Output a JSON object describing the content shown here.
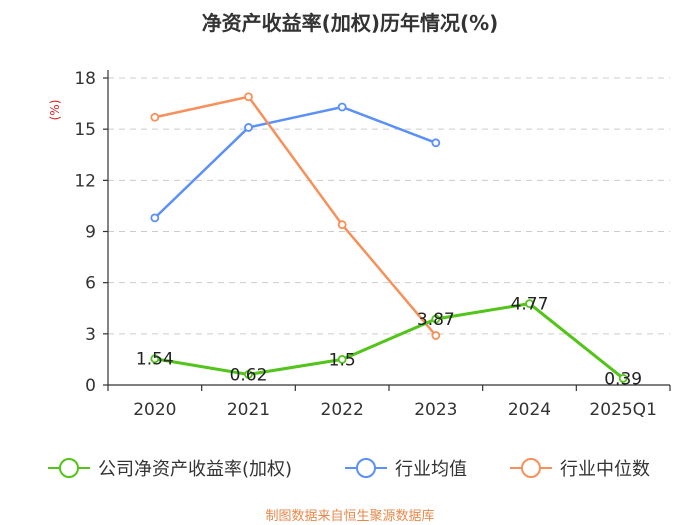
{
  "chart_data": {
    "type": "line",
    "title": "净资产收益率(加权)历年情况(%)",
    "ylabel": "(%)",
    "categories": [
      "2020",
      "2021",
      "2022",
      "2023",
      "2024",
      "2025Q1"
    ],
    "ylim": [
      0,
      18
    ],
    "yticks": [
      0,
      3,
      6,
      9,
      12,
      15,
      18
    ],
    "grid": true,
    "legend_position": "bottom",
    "series": [
      {
        "name": "公司净资产收益率(加权)",
        "color": "#52c41a",
        "values": [
          1.54,
          0.62,
          1.5,
          3.87,
          4.77,
          0.39
        ],
        "labels": [
          "1.54",
          "0.62",
          "1.5",
          "3.87",
          "4.77",
          "0.39"
        ]
      },
      {
        "name": "行业均值",
        "color": "#5b8ff9",
        "values": [
          9.8,
          15.1,
          16.3,
          14.2,
          null,
          null
        ]
      },
      {
        "name": "行业中位数",
        "color": "#f7905a",
        "values": [
          15.7,
          16.9,
          9.4,
          2.9,
          null,
          null
        ]
      }
    ],
    "source": "制图数据来自恒生聚源数据库"
  }
}
